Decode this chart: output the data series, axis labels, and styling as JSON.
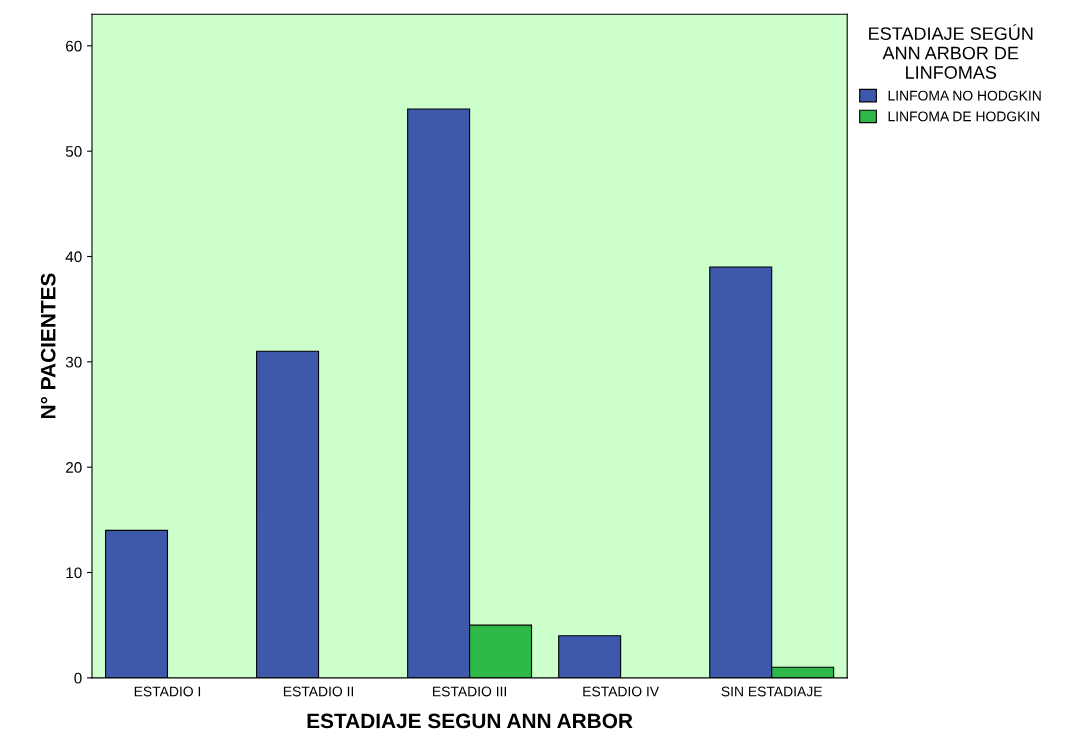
{
  "chart_data": {
    "type": "bar",
    "xlabel": "ESTADIAJE SEGUN ANN ARBOR",
    "ylabel": "N° PACIENTES",
    "legend_title": "ESTADIAJE SEGÚN\nANN ARBOR DE\nLINFOMAS",
    "categories": [
      "ESTADIO I",
      "ESTADIO II",
      "ESTADIO III",
      "ESTADIO IV",
      "SIN ESTADIAJE"
    ],
    "series": [
      {
        "name": "LINFOMA NO HODGKIN",
        "color": "#3e58ac",
        "values": [
          14,
          31,
          54,
          4,
          39
        ]
      },
      {
        "name": "LINFOMA DE HODGKIN",
        "color": "#2eb848",
        "values": [
          null,
          null,
          5,
          null,
          1
        ]
      }
    ],
    "ylim": [
      0,
      63
    ],
    "yticks": [
      0,
      10,
      20,
      30,
      40,
      50,
      60
    ],
    "grid": false,
    "legend": "top right"
  }
}
